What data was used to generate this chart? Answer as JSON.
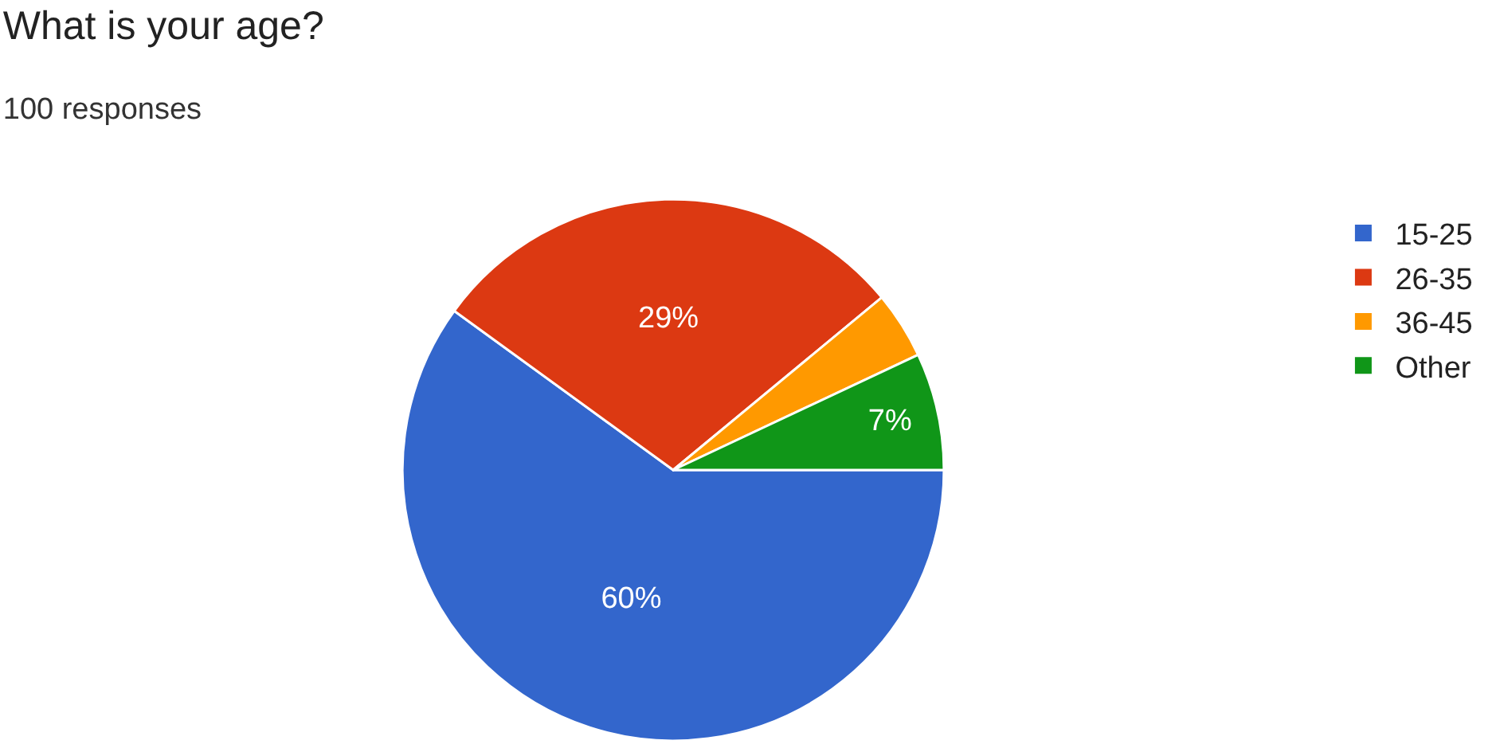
{
  "chart_data": {
    "type": "pie",
    "title": "What is your age?",
    "subtitle": "100 responses",
    "categories": [
      "15-25",
      "26-35",
      "36-45",
      "Other"
    ],
    "values": [
      60,
      29,
      4,
      7
    ],
    "colors": [
      "#3366cc",
      "#dc3912",
      "#ff9900",
      "#109618"
    ],
    "value_labels": [
      "60%",
      "29%",
      null,
      "7%"
    ],
    "legend": "top right"
  }
}
